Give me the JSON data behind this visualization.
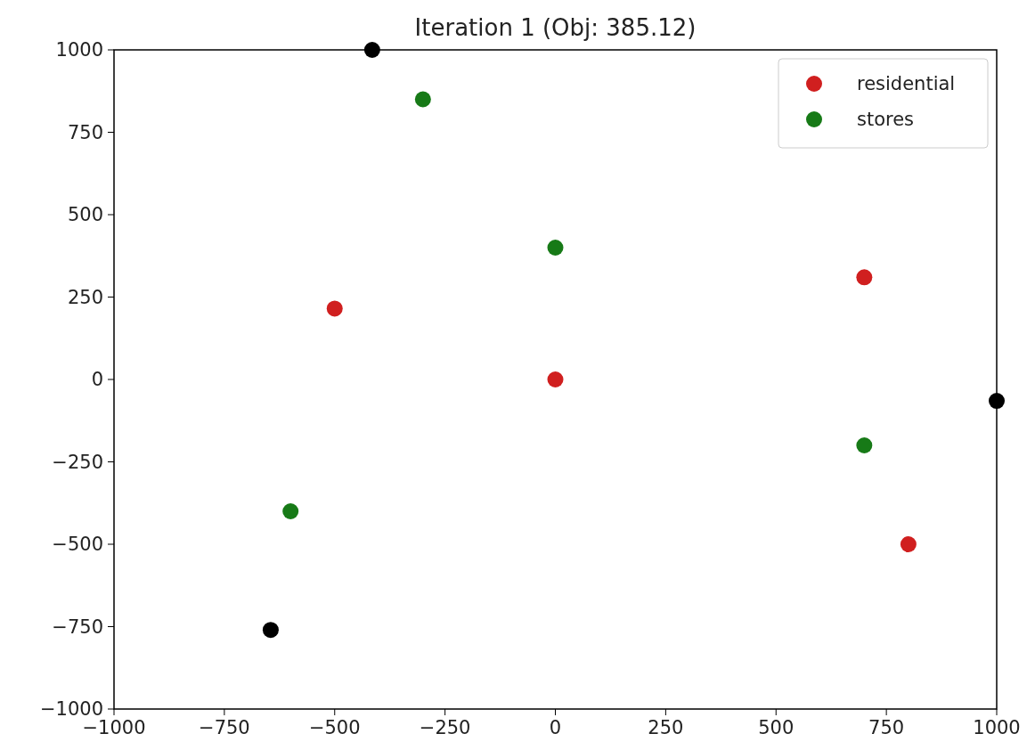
{
  "chart_data": {
    "type": "scatter",
    "title": "Iteration 1 (Obj: 385.12)",
    "xlim": [
      -1000,
      1000
    ],
    "ylim": [
      -1000,
      1000
    ],
    "xticks": [
      -1000,
      -750,
      -500,
      -250,
      0,
      250,
      500,
      750,
      1000
    ],
    "yticks": [
      -1000,
      -750,
      -500,
      -250,
      0,
      250,
      500,
      750,
      1000
    ],
    "grid": false,
    "legend": "top right",
    "marker": "circle",
    "series": [
      {
        "name": "residential",
        "color": "#d01f1f",
        "x": [
          -500,
          0,
          700,
          800
        ],
        "values": [
          215,
          0,
          310,
          -500
        ]
      },
      {
        "name": "stores",
        "color": "#177a17",
        "x": [
          -300,
          0,
          700,
          -600
        ],
        "values": [
          850,
          400,
          -200,
          -400
        ]
      },
      {
        "color": "#000000",
        "x": [
          -415,
          1000,
          -645
        ],
        "values": [
          1000,
          -65,
          -760
        ]
      }
    ]
  }
}
